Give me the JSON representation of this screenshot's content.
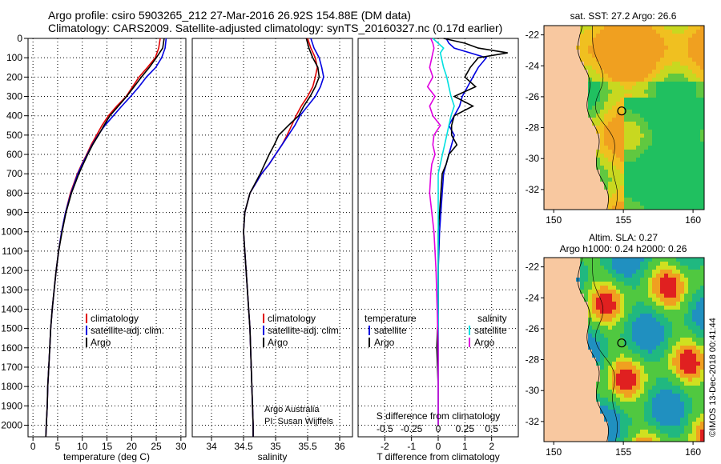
{
  "header": {
    "line1": "Argo profile: csiro 5903265_212 27-Mar-2016 26.92S 154.88E (DM data)",
    "line2": "Climatology: CARS2009. Satellite-adjusted climatology: synTS_20160327.nc (0.17d earlier)"
  },
  "colors": {
    "climatology": "#e00000",
    "satellite": "#0000e0",
    "argo": "#000000",
    "sat_salinity": "#00e0e0",
    "argo_salinity": "#e000e0",
    "land": "#f8c8a0"
  },
  "depth_ticks": [
    "0",
    "100",
    "200",
    "300",
    "400",
    "500",
    "600",
    "700",
    "800",
    "900",
    "1000",
    "1100",
    "1200",
    "1300",
    "1400",
    "1500",
    "1600",
    "1700",
    "1800",
    "1900",
    "2000"
  ],
  "legend": {
    "climatology": "climatology",
    "satellite": "satellite-adj. clim.",
    "argo": "Argo"
  },
  "legend_diff": {
    "temp_heading": "temperature",
    "sal_heading": "salinity",
    "satellite": "satellite",
    "argo": "Argo"
  },
  "credit": {
    "line1": "Argo Australia",
    "line2": "PI: Susan Wijffels"
  },
  "side_stamp": "©IMOS 13-Dec-2018 00:41:44",
  "maps": {
    "top": {
      "title": "sat. SST: 27.2 Argo: 26.6"
    },
    "bottom": {
      "title1": "Altim. SLA: 0.27",
      "title2": "Argo h1000: 0.24 h2000: 0.26"
    },
    "lat_ticks": [
      "-22",
      "-24",
      "-26",
      "-28",
      "-30",
      "-32"
    ],
    "lon_ticks": [
      "150",
      "155",
      "160"
    ],
    "profile_location": {
      "lon": 154.88,
      "lat": -26.92
    }
  },
  "chart_data": [
    {
      "type": "line",
      "panel": "temperature",
      "xlabel": "temperature (deg C)",
      "xlim": [
        -1,
        31
      ],
      "xticks": [
        "0",
        "5",
        "10",
        "15",
        "20",
        "25",
        "30"
      ],
      "ylim": [
        2060,
        0
      ],
      "depth": [
        0,
        50,
        100,
        150,
        200,
        250,
        300,
        350,
        400,
        450,
        500,
        550,
        600,
        650,
        700,
        800,
        900,
        1000,
        1100,
        1200,
        1300,
        1400,
        1500,
        1600,
        1700,
        1800,
        1900,
        2000,
        2060
      ],
      "series": [
        {
          "name": "climatology",
          "values": [
            25.8,
            25.5,
            24.8,
            23.2,
            21.5,
            20.2,
            18.9,
            17.0,
            15.3,
            14.0,
            12.9,
            11.8,
            10.9,
            9.9,
            9.0,
            7.6,
            6.6,
            5.8,
            5.2,
            4.7,
            4.3,
            3.9,
            3.6,
            3.4,
            3.2,
            3.0,
            2.9,
            2.7,
            2.6
          ]
        },
        {
          "name": "satellite-adj. clim.",
          "values": [
            27.0,
            26.8,
            26.1,
            24.9,
            23.0,
            21.5,
            19.8,
            18.0,
            16.3,
            14.6,
            13.2,
            12.0,
            11.0,
            10.0,
            9.1,
            7.7,
            6.6,
            5.8,
            5.2,
            4.7,
            4.3,
            3.9,
            3.6,
            3.4,
            3.2,
            3.0,
            2.9,
            2.7,
            2.6
          ]
        },
        {
          "name": "Argo",
          "values": [
            26.6,
            26.3,
            25.0,
            23.6,
            22.0,
            20.5,
            19.0,
            17.3,
            15.6,
            14.4,
            13.3,
            12.1,
            11.1,
            10.2,
            9.3,
            7.8,
            6.7,
            5.9,
            5.2,
            4.7,
            4.3,
            3.9,
            3.6,
            3.4,
            3.2,
            3.0,
            2.9,
            2.7,
            2.6
          ]
        }
      ]
    },
    {
      "type": "line",
      "panel": "salinity",
      "xlabel": "salinity",
      "xlim": [
        33.7,
        36.2
      ],
      "xticks": [
        "34",
        "34.5",
        "35",
        "35.5",
        "36"
      ],
      "ylim": [
        2060,
        0
      ],
      "depth": [
        0,
        50,
        100,
        150,
        200,
        250,
        300,
        350,
        400,
        450,
        500,
        550,
        600,
        650,
        700,
        800,
        900,
        1000,
        1100,
        1200,
        1300,
        1400,
        1500,
        1600,
        1700,
        1800,
        1900,
        2000,
        2060
      ],
      "series": [
        {
          "name": "climatology",
          "values": [
            35.5,
            35.55,
            35.62,
            35.65,
            35.62,
            35.58,
            35.5,
            35.4,
            35.32,
            35.25,
            35.18,
            35.1,
            35.0,
            34.9,
            34.78,
            34.6,
            34.52,
            34.5,
            34.52,
            34.54,
            34.56,
            34.58,
            34.6,
            34.61,
            34.62,
            34.63,
            34.64,
            34.65,
            34.65
          ]
        },
        {
          "name": "satellite-adj. clim.",
          "values": [
            35.55,
            35.6,
            35.68,
            35.72,
            35.75,
            35.7,
            35.62,
            35.5,
            35.38,
            35.3,
            35.2,
            35.1,
            35.0,
            34.9,
            34.78,
            34.6,
            34.52,
            34.5,
            34.52,
            34.54,
            34.56,
            34.58,
            34.6,
            34.61,
            34.62,
            34.63,
            34.64,
            34.65,
            34.65
          ]
        },
        {
          "name": "Argo",
          "values": [
            35.48,
            35.52,
            35.58,
            35.66,
            35.68,
            35.62,
            35.54,
            35.44,
            35.36,
            35.2,
            35.05,
            34.98,
            34.9,
            34.83,
            34.76,
            34.6,
            34.52,
            34.5,
            34.52,
            34.54,
            34.56,
            34.58,
            34.6,
            34.61,
            34.62,
            34.63,
            34.64,
            34.65,
            34.65
          ]
        }
      ]
    },
    {
      "type": "line",
      "panel": "difference",
      "xlabel": "T difference from climatology",
      "xlabel_top": "S difference from climatology",
      "xlim": [
        -3,
        3
      ],
      "xticks": [
        "-2",
        "-1",
        "0",
        "1",
        "2"
      ],
      "xticks_top": [
        "-0.5",
        "-0.25",
        "0",
        "0.25",
        "0.5"
      ],
      "ylim": [
        2060,
        0
      ],
      "depth": [
        0,
        25,
        50,
        75,
        100,
        150,
        200,
        250,
        300,
        350,
        400,
        450,
        500,
        550,
        600,
        650,
        700,
        800,
        900,
        1000,
        1200,
        1400,
        1600,
        1800,
        2000
      ],
      "series": [
        {
          "name": "temperature satellite",
          "values": [
            0.3,
            0.4,
            0.6,
            1.2,
            1.8,
            1.5,
            1.3,
            1.1,
            0.9,
            0.8,
            0.6,
            0.4,
            0.6,
            0.5,
            0.4,
            0.3,
            0.2,
            0.15,
            0.1,
            0.05,
            0.0,
            0.0,
            0.0,
            0.0,
            0.0
          ]
        },
        {
          "name": "temperature Argo",
          "values": [
            0.2,
            1.0,
            1.5,
            2.6,
            1.5,
            1.2,
            1.0,
            1.4,
            0.6,
            1.3,
            0.6,
            0.5,
            0.5,
            0.7,
            0.4,
            0.3,
            0.15,
            0.1,
            0.05,
            0.0,
            0.0,
            0.0,
            -0.05,
            0.0,
            0.0
          ]
        },
        {
          "name": "salinity satellite",
          "values": [
            -0.05,
            0.0,
            0.05,
            0.02,
            0.03,
            0.05,
            0.08,
            0.1,
            0.12,
            0.15,
            0.12,
            0.1,
            0.08,
            0.06,
            0.04,
            0.02,
            0.0,
            0.0,
            0.0,
            0.0,
            0.0,
            0.0,
            0.0,
            0.0,
            0.0
          ]
        },
        {
          "name": "salinity Argo",
          "values": [
            -0.07,
            -0.05,
            -0.04,
            -0.05,
            -0.06,
            -0.08,
            -0.05,
            -0.1,
            -0.03,
            -0.08,
            -0.05,
            0.02,
            -0.04,
            -0.05,
            -0.03,
            -0.06,
            -0.07,
            -0.08,
            -0.06,
            -0.04,
            -0.02,
            -0.01,
            0.0,
            0.0,
            0.0
          ]
        }
      ]
    }
  ]
}
